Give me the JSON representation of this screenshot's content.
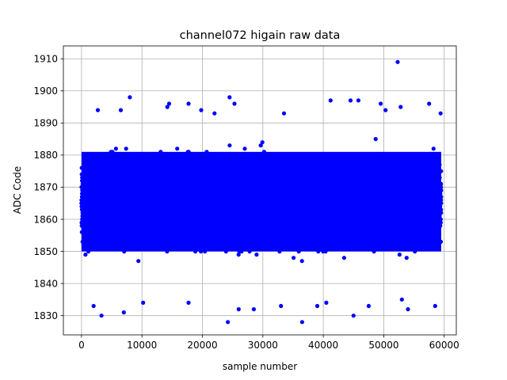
{
  "chart_data": {
    "type": "scatter",
    "title": "channel072 higain raw data",
    "xlabel": "sample number",
    "ylabel": "ADC Code",
    "xlim": [
      -3000,
      62000
    ],
    "ylim": [
      1824,
      1914
    ],
    "x_ticks": [
      0,
      10000,
      20000,
      30000,
      40000,
      50000,
      60000
    ],
    "x_tick_labels": [
      "0",
      "10000",
      "20000",
      "30000",
      "40000",
      "50000",
      "60000"
    ],
    "y_ticks": [
      1830,
      1840,
      1850,
      1860,
      1870,
      1880,
      1890,
      1900,
      1910
    ],
    "y_tick_labels": [
      "1830",
      "1840",
      "1850",
      "1860",
      "1870",
      "1880",
      "1890",
      "1900",
      "1910"
    ],
    "grid": true,
    "color": "#0000ff",
    "series": [
      {
        "x_range": [
          0,
          59500
        ],
        "n_samples": 59500,
        "typical_range": [
          1847,
          1884
        ],
        "outliers": [
          {
            "x": 52300,
            "y": 1909
          },
          {
            "x": 24200,
            "y": 1828
          },
          {
            "x": 36500,
            "y": 1828
          },
          {
            "x": 3300,
            "y": 1830
          },
          {
            "x": 45000,
            "y": 1830
          },
          {
            "x": 7000,
            "y": 1831
          },
          {
            "x": 2000,
            "y": 1833
          },
          {
            "x": 58500,
            "y": 1833
          },
          {
            "x": 54000,
            "y": 1832
          },
          {
            "x": 26000,
            "y": 1832
          },
          {
            "x": 28500,
            "y": 1832
          },
          {
            "x": 33000,
            "y": 1833
          },
          {
            "x": 39000,
            "y": 1833
          },
          {
            "x": 47500,
            "y": 1833
          },
          {
            "x": 10200,
            "y": 1834
          },
          {
            "x": 17700,
            "y": 1834
          },
          {
            "x": 40500,
            "y": 1834
          },
          {
            "x": 53000,
            "y": 1835
          },
          {
            "x": 8000,
            "y": 1898
          },
          {
            "x": 24500,
            "y": 1898
          },
          {
            "x": 41200,
            "y": 1897
          },
          {
            "x": 44500,
            "y": 1897
          },
          {
            "x": 45800,
            "y": 1897
          },
          {
            "x": 14500,
            "y": 1896
          },
          {
            "x": 17700,
            "y": 1896
          },
          {
            "x": 25300,
            "y": 1896
          },
          {
            "x": 49500,
            "y": 1896
          },
          {
            "x": 57500,
            "y": 1896
          },
          {
            "x": 14200,
            "y": 1895
          },
          {
            "x": 52800,
            "y": 1895
          },
          {
            "x": 6500,
            "y": 1894
          },
          {
            "x": 2700,
            "y": 1894
          },
          {
            "x": 19800,
            "y": 1894
          },
          {
            "x": 50300,
            "y": 1894
          },
          {
            "x": 59400,
            "y": 1893
          },
          {
            "x": 22000,
            "y": 1893
          },
          {
            "x": 33500,
            "y": 1893
          }
        ]
      }
    ]
  }
}
